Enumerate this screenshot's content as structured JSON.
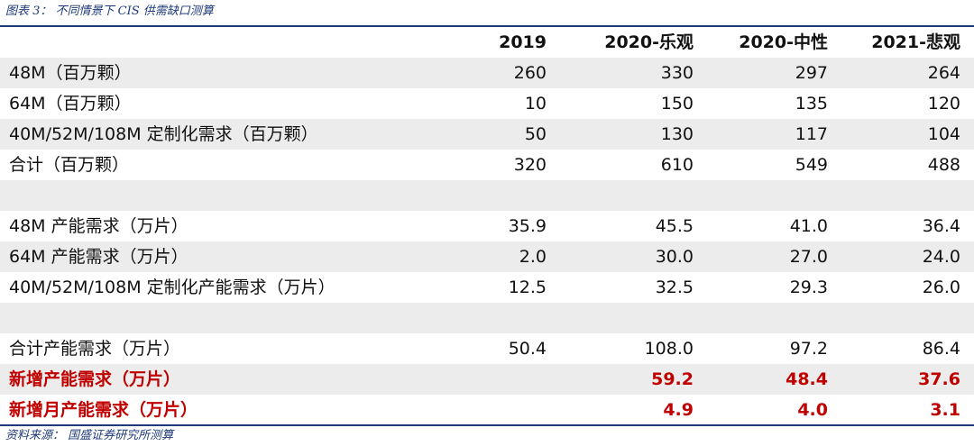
{
  "caption": "图表 3：  不同情景下 CIS 供需缺口测算",
  "source": "资料来源：  国盛证券研究所测算",
  "header": [
    "",
    "2019",
    "2020-乐观",
    "2020-中性",
    "2021-悲观"
  ],
  "rows": [
    {
      "label": "48M（百万颗）",
      "values": [
        "260",
        "330",
        "297",
        "264"
      ]
    },
    {
      "label": "64M（百万颗）",
      "values": [
        "10",
        "150",
        "135",
        "120"
      ]
    },
    {
      "label": "40M/52M/108M 定制化需求（百万颗）",
      "values": [
        "50",
        "130",
        "117",
        "104"
      ]
    },
    {
      "label": "合计（百万颗）",
      "values": [
        "320",
        "610",
        "549",
        "488"
      ]
    },
    {
      "label": "",
      "values": [
        "",
        "",
        "",
        ""
      ]
    },
    {
      "label": "48M 产能需求（万片）",
      "values": [
        "35.9",
        "45.5",
        "41.0",
        "36.4"
      ]
    },
    {
      "label": "64M 产能需求（万片）",
      "values": [
        "2.0",
        "30.0",
        "27.0",
        "24.0"
      ]
    },
    {
      "label": "40M/52M/108M 定制化产能需求（万片）",
      "values": [
        "12.5",
        "32.5",
        "29.3",
        "26.0"
      ]
    },
    {
      "label": "",
      "values": [
        "",
        "",
        "",
        ""
      ]
    },
    {
      "label": "合计产能需求（万片）",
      "values": [
        "50.4",
        "108.0",
        "97.2",
        "86.4"
      ]
    },
    {
      "label": "新增产能需求（万片）",
      "values": [
        "",
        "59.2",
        "48.4",
        "37.6"
      ]
    },
    {
      "label": "新增月产能需求（万片）",
      "values": [
        "",
        "4.9",
        "4.0",
        "3.1"
      ]
    }
  ],
  "colors": {
    "rule": "#1f3a7a",
    "caption": "#1f3a7a",
    "highlight": "#c00000",
    "shade": "#ececec"
  }
}
